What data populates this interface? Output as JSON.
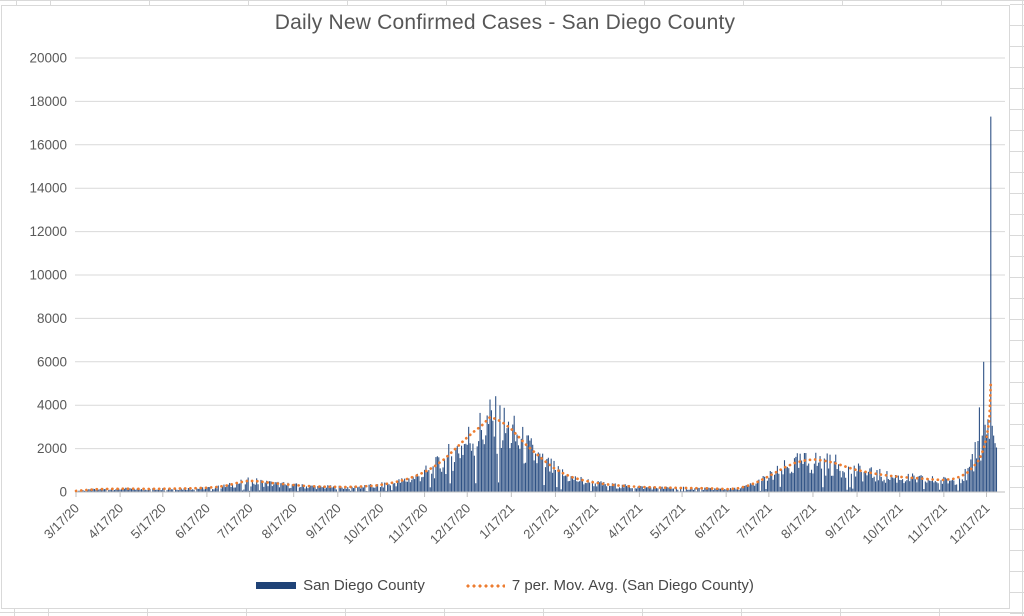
{
  "chart_data": {
    "type": "bar",
    "title": "Daily New Confirmed Cases - San Diego County",
    "start_date": "3/17/20",
    "n_days": 648,
    "y_axis": {
      "min": 0,
      "max": 20000,
      "step": 2000,
      "ticks": [
        0,
        2000,
        4000,
        6000,
        8000,
        10000,
        12000,
        14000,
        16000,
        18000,
        20000
      ]
    },
    "x_axis": {
      "labels": [
        {
          "label": "3/17/20",
          "day": 0
        },
        {
          "label": "4/17/20",
          "day": 31
        },
        {
          "label": "5/17/20",
          "day": 61
        },
        {
          "label": "6/17/20",
          "day": 92
        },
        {
          "label": "7/17/20",
          "day": 122
        },
        {
          "label": "8/17/20",
          "day": 153
        },
        {
          "label": "9/17/20",
          "day": 184
        },
        {
          "label": "10/17/20",
          "day": 214
        },
        {
          "label": "11/17/20",
          "day": 245
        },
        {
          "label": "12/17/20",
          "day": 275
        },
        {
          "label": "1/17/21",
          "day": 306
        },
        {
          "label": "2/17/21",
          "day": 337
        },
        {
          "label": "3/17/21",
          "day": 365
        },
        {
          "label": "4/17/21",
          "day": 396
        },
        {
          "label": "5/17/21",
          "day": 426
        },
        {
          "label": "6/17/21",
          "day": 457
        },
        {
          "label": "7/17/21",
          "day": 487
        },
        {
          "label": "8/17/21",
          "day": 518
        },
        {
          "label": "9/17/21",
          "day": 549
        },
        {
          "label": "10/17/21",
          "day": 579
        },
        {
          "label": "11/17/21",
          "day": 610
        },
        {
          "label": "12/17/21",
          "day": 640
        }
      ]
    },
    "series": [
      {
        "name": "San Diego County",
        "kind": "bar",
        "color": "#24497E"
      },
      {
        "name": "7 per. Mov. Avg. (San Diego County)",
        "kind": "dotted-line",
        "color": "#ED7D31"
      }
    ],
    "moving_avg_anchors": [
      [
        0,
        50
      ],
      [
        7,
        90
      ],
      [
        14,
        125
      ],
      [
        21,
        140
      ],
      [
        30,
        148
      ],
      [
        40,
        152
      ],
      [
        50,
        140
      ],
      [
        60,
        148
      ],
      [
        70,
        158
      ],
      [
        80,
        168
      ],
      [
        90,
        188
      ],
      [
        100,
        235
      ],
      [
        107,
        310
      ],
      [
        114,
        430
      ],
      [
        121,
        515
      ],
      [
        128,
        495
      ],
      [
        135,
        435
      ],
      [
        142,
        385
      ],
      [
        150,
        335
      ],
      [
        160,
        285
      ],
      [
        170,
        252
      ],
      [
        180,
        238
      ],
      [
        190,
        228
      ],
      [
        200,
        252
      ],
      [
        210,
        290
      ],
      [
        217,
        360
      ],
      [
        224,
        450
      ],
      [
        231,
        560
      ],
      [
        238,
        720
      ],
      [
        245,
        920
      ],
      [
        252,
        1180
      ],
      [
        259,
        1520
      ],
      [
        266,
        1950
      ],
      [
        273,
        2400
      ],
      [
        280,
        2800
      ],
      [
        285,
        3050
      ],
      [
        291,
        3450
      ],
      [
        296,
        3350
      ],
      [
        301,
        3150
      ],
      [
        306,
        2900
      ],
      [
        311,
        2550
      ],
      [
        316,
        2200
      ],
      [
        322,
        1850
      ],
      [
        329,
        1450
      ],
      [
        336,
        1100
      ],
      [
        343,
        840
      ],
      [
        350,
        650
      ],
      [
        357,
        530
      ],
      [
        364,
        440
      ],
      [
        372,
        360
      ],
      [
        381,
        300
      ],
      [
        390,
        258
      ],
      [
        400,
        225
      ],
      [
        410,
        205
      ],
      [
        420,
        192
      ],
      [
        430,
        182
      ],
      [
        440,
        172
      ],
      [
        450,
        155
      ],
      [
        458,
        132
      ],
      [
        465,
        165
      ],
      [
        471,
        260
      ],
      [
        478,
        430
      ],
      [
        485,
        660
      ],
      [
        492,
        910
      ],
      [
        499,
        1160
      ],
      [
        506,
        1360
      ],
      [
        513,
        1460
      ],
      [
        519,
        1500
      ],
      [
        526,
        1440
      ],
      [
        533,
        1340
      ],
      [
        540,
        1190
      ],
      [
        547,
        1040
      ],
      [
        554,
        940
      ],
      [
        561,
        850
      ],
      [
        568,
        780
      ],
      [
        575,
        725
      ],
      [
        582,
        680
      ],
      [
        589,
        645
      ],
      [
        596,
        610
      ],
      [
        603,
        575
      ],
      [
        610,
        555
      ],
      [
        617,
        610
      ],
      [
        621,
        700
      ],
      [
        626,
        860
      ],
      [
        631,
        1180
      ],
      [
        635,
        1500
      ],
      [
        638,
        2000
      ],
      [
        640,
        2500
      ],
      [
        642,
        3300
      ],
      [
        643,
        5000
      ]
    ],
    "moving_avg_end_day": 643,
    "daily_overrides": {
      "629": 1500,
      "630": 1750,
      "631": 950,
      "632": 2300,
      "633": 1550,
      "634": 2350,
      "635": 3900,
      "636": 1450,
      "637": 2600,
      "638": 6000,
      "639": 3100,
      "640": 2650,
      "641": 3350,
      "642": 2450,
      "643": 17300,
      "644": 3050,
      "645": 2600,
      "646": 2250,
      "647": 2050
    },
    "noise": {
      "min_factor": 0.5,
      "span": 0.82,
      "dropout_rate": 0.07,
      "dropout_factor": 0.18
    }
  },
  "legend": {
    "bar_label": "San Diego County",
    "avg_label": "7 per. Mov. Avg. (San Diego County)"
  },
  "colors": {
    "bar": "#24497E",
    "legend_bar": "#1F4377",
    "moving_avg": "#ED7D31",
    "gridline": "#D9D9D9",
    "axis_line": "#BFBFBF",
    "axis_label": "#595959",
    "title": "#575757",
    "chart_border": "#D9D9D9",
    "sheet_gridline": "#D9D9D9"
  }
}
